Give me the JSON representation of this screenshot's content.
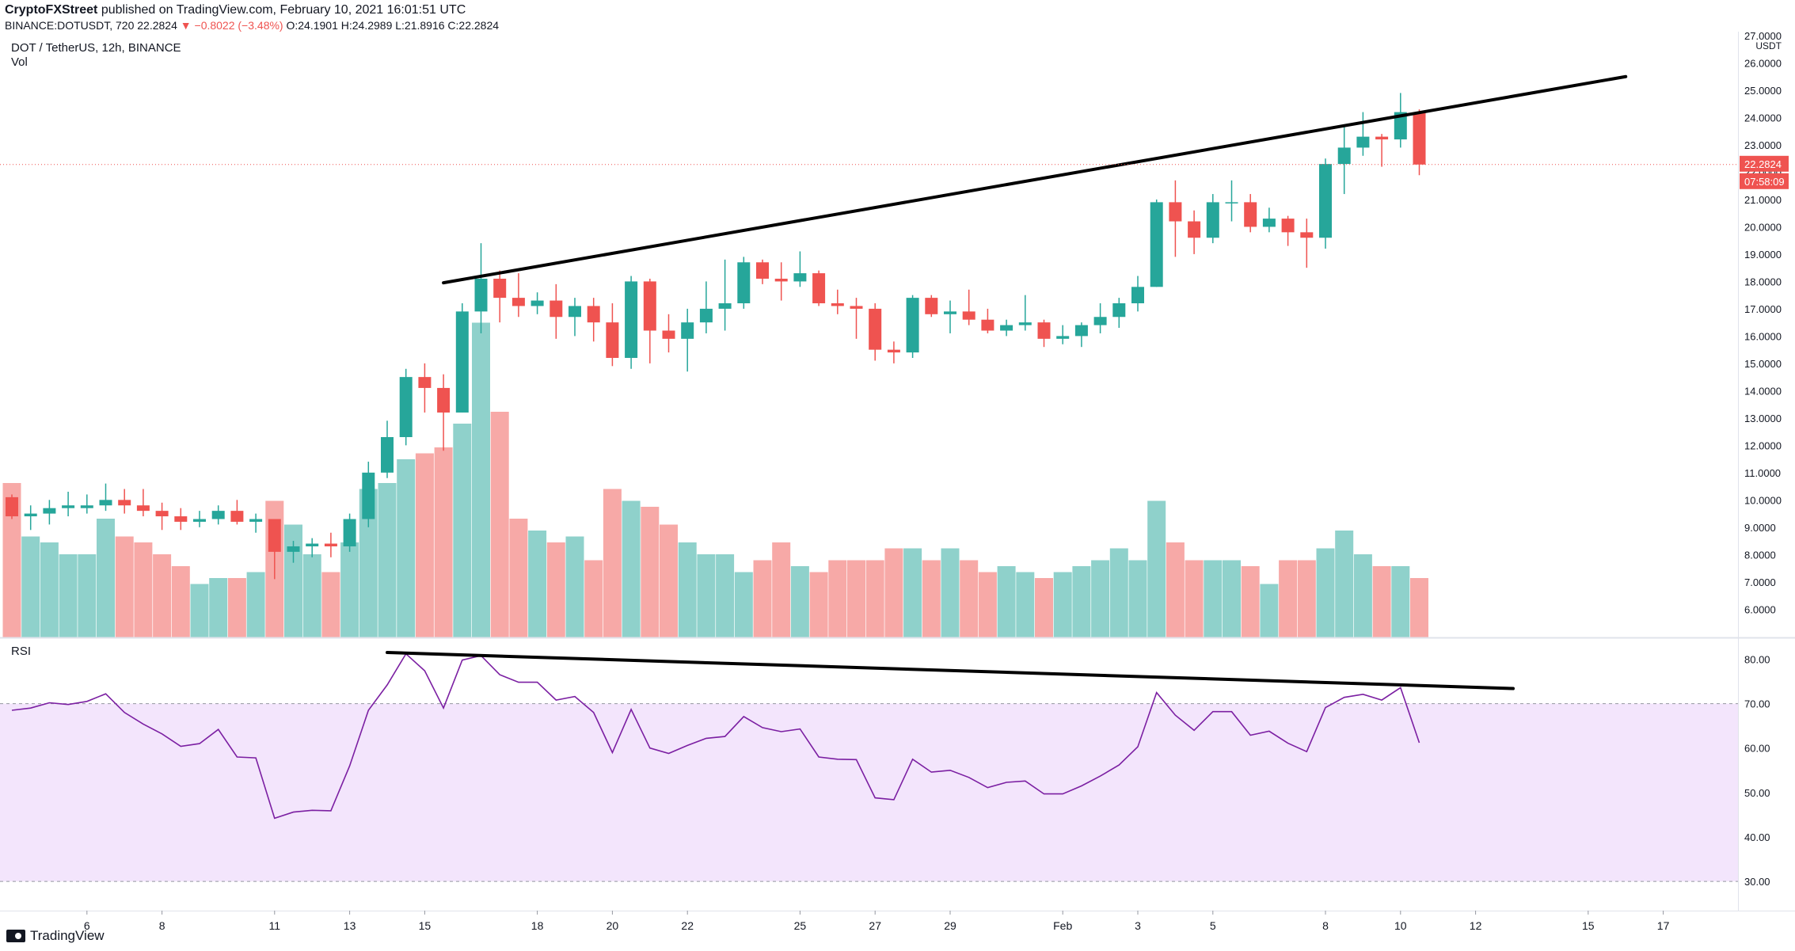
{
  "header": {
    "publisher": "CryptoFXStreet",
    "published_text": "published on TradingView.com, February 10, 2021 16:01:51 UTC",
    "ticker_line": "BINANCE:DOTUSDT, 720",
    "last": "22.2824",
    "change": "▼ −0.8022 (−3.48%)",
    "ohlc": "O:24.1901 H:24.2989 L:21.8916 C:22.2824"
  },
  "symbol_title": "DOT / TetherUS, 12h, BINANCE",
  "volume_label": "Vol",
  "rsi_label": "RSI",
  "logo_text": "TradingView",
  "colors": {
    "up": "#26a69a",
    "down": "#ef5350",
    "vol_up": "#8fd1cb",
    "vol_down": "#f7a9a7",
    "rsi_line": "#7b1fa2",
    "rsi_band": "#f3e5fc",
    "trendline": "#000000"
  },
  "chart_data": [
    {
      "type": "candlestick",
      "title": "DOT / TetherUS, 12h, BINANCE",
      "y_axis": {
        "unit": "USDT",
        "ylim": [
          5.4,
          27.0
        ],
        "ticks": [
          6,
          7,
          8,
          9,
          10,
          11,
          12,
          13,
          14,
          15,
          16,
          17,
          18,
          19,
          20,
          21,
          22,
          23,
          24,
          25,
          26,
          27
        ],
        "tick_labels": [
          "6.0000",
          "7.0000",
          "8.0000",
          "9.0000",
          "10.0000",
          "11.0000",
          "12.0000",
          "13.0000",
          "14.0000",
          "15.0000",
          "16.0000",
          "17.0000",
          "18.0000",
          "19.0000",
          "20.0000",
          "21.0000",
          "22.0000",
          "23.0000",
          "24.0000",
          "25.0000",
          "26.0000",
          "27.0000"
        ]
      },
      "x_axis": {
        "tick_labels": [
          "6",
          "8",
          "11",
          "13",
          "15",
          "18",
          "20",
          "22",
          "25",
          "27",
          "29",
          "Feb",
          "3",
          "5",
          "8",
          "10",
          "12",
          "15",
          "17"
        ],
        "tick_candle_index": [
          4,
          8,
          14,
          18,
          22,
          28,
          32,
          36,
          42,
          46,
          50,
          56,
          60,
          64,
          70,
          74,
          78,
          84,
          88
        ]
      },
      "last_price_label": "22.2824",
      "countdown_label": "07:58:09",
      "candles": [
        {
          "o": 10.1,
          "h": 10.2,
          "l": 9.3,
          "c": 9.4
        },
        {
          "o": 9.4,
          "h": 9.8,
          "l": 8.9,
          "c": 9.5
        },
        {
          "o": 9.5,
          "h": 10.0,
          "l": 9.1,
          "c": 9.7
        },
        {
          "o": 9.7,
          "h": 10.3,
          "l": 9.4,
          "c": 9.8
        },
        {
          "o": 9.7,
          "h": 10.2,
          "l": 9.5,
          "c": 9.8
        },
        {
          "o": 9.8,
          "h": 10.6,
          "l": 9.6,
          "c": 10.0
        },
        {
          "o": 10.0,
          "h": 10.4,
          "l": 9.5,
          "c": 9.8
        },
        {
          "o": 9.8,
          "h": 10.4,
          "l": 9.4,
          "c": 9.6
        },
        {
          "o": 9.6,
          "h": 9.9,
          "l": 8.9,
          "c": 9.4
        },
        {
          "o": 9.4,
          "h": 9.7,
          "l": 8.9,
          "c": 9.2
        },
        {
          "o": 9.2,
          "h": 9.6,
          "l": 9.0,
          "c": 9.3
        },
        {
          "o": 9.3,
          "h": 9.8,
          "l": 9.1,
          "c": 9.6
        },
        {
          "o": 9.6,
          "h": 10.0,
          "l": 9.1,
          "c": 9.2
        },
        {
          "o": 9.2,
          "h": 9.5,
          "l": 8.8,
          "c": 9.3
        },
        {
          "o": 9.3,
          "h": 9.3,
          "l": 7.1,
          "c": 8.1
        },
        {
          "o": 8.1,
          "h": 8.5,
          "l": 7.7,
          "c": 8.3
        },
        {
          "o": 8.3,
          "h": 8.6,
          "l": 7.9,
          "c": 8.4
        },
        {
          "o": 8.4,
          "h": 8.8,
          "l": 7.9,
          "c": 8.3
        },
        {
          "o": 8.3,
          "h": 9.5,
          "l": 8.1,
          "c": 9.3
        },
        {
          "o": 9.3,
          "h": 11.4,
          "l": 9.0,
          "c": 11.0
        },
        {
          "o": 11.0,
          "h": 12.9,
          "l": 10.8,
          "c": 12.3
        },
        {
          "o": 12.3,
          "h": 14.8,
          "l": 12.0,
          "c": 14.5
        },
        {
          "o": 14.5,
          "h": 15.0,
          "l": 13.2,
          "c": 14.1
        },
        {
          "o": 14.1,
          "h": 14.6,
          "l": 11.8,
          "c": 13.2
        },
        {
          "o": 13.2,
          "h": 17.2,
          "l": 13.2,
          "c": 16.9
        },
        {
          "o": 16.9,
          "h": 19.4,
          "l": 16.1,
          "c": 18.1
        },
        {
          "o": 18.1,
          "h": 18.4,
          "l": 16.5,
          "c": 17.4
        },
        {
          "o": 17.4,
          "h": 18.3,
          "l": 16.7,
          "c": 17.1
        },
        {
          "o": 17.1,
          "h": 17.6,
          "l": 16.8,
          "c": 17.3
        },
        {
          "o": 17.3,
          "h": 17.9,
          "l": 15.9,
          "c": 16.7
        },
        {
          "o": 16.7,
          "h": 17.4,
          "l": 16.0,
          "c": 17.1
        },
        {
          "o": 17.1,
          "h": 17.4,
          "l": 15.8,
          "c": 16.5
        },
        {
          "o": 16.5,
          "h": 17.2,
          "l": 14.9,
          "c": 15.2
        },
        {
          "o": 15.2,
          "h": 18.2,
          "l": 14.8,
          "c": 18.0
        },
        {
          "o": 18.0,
          "h": 18.1,
          "l": 15.0,
          "c": 16.2
        },
        {
          "o": 16.2,
          "h": 16.8,
          "l": 15.4,
          "c": 15.9
        },
        {
          "o": 15.9,
          "h": 17.0,
          "l": 14.7,
          "c": 16.5
        },
        {
          "o": 16.5,
          "h": 18.0,
          "l": 16.1,
          "c": 17.0
        },
        {
          "o": 17.0,
          "h": 18.8,
          "l": 16.2,
          "c": 17.2
        },
        {
          "o": 17.2,
          "h": 18.9,
          "l": 17.0,
          "c": 18.7
        },
        {
          "o": 18.7,
          "h": 18.8,
          "l": 17.9,
          "c": 18.1
        },
        {
          "o": 18.1,
          "h": 18.7,
          "l": 17.3,
          "c": 18.0
        },
        {
          "o": 18.0,
          "h": 19.1,
          "l": 17.8,
          "c": 18.3
        },
        {
          "o": 18.3,
          "h": 18.4,
          "l": 17.1,
          "c": 17.2
        },
        {
          "o": 17.2,
          "h": 17.7,
          "l": 16.8,
          "c": 17.1
        },
        {
          "o": 17.1,
          "h": 17.4,
          "l": 15.9,
          "c": 17.0
        },
        {
          "o": 17.0,
          "h": 17.2,
          "l": 15.1,
          "c": 15.5
        },
        {
          "o": 15.5,
          "h": 15.8,
          "l": 15.0,
          "c": 15.4
        },
        {
          "o": 15.4,
          "h": 17.5,
          "l": 15.2,
          "c": 17.4
        },
        {
          "o": 17.4,
          "h": 17.5,
          "l": 16.7,
          "c": 16.8
        },
        {
          "o": 16.8,
          "h": 17.3,
          "l": 16.1,
          "c": 16.9
        },
        {
          "o": 16.9,
          "h": 17.7,
          "l": 16.4,
          "c": 16.6
        },
        {
          "o": 16.6,
          "h": 17.0,
          "l": 16.1,
          "c": 16.2
        },
        {
          "o": 16.2,
          "h": 16.6,
          "l": 16.0,
          "c": 16.4
        },
        {
          "o": 16.4,
          "h": 17.5,
          "l": 16.2,
          "c": 16.5
        },
        {
          "o": 16.5,
          "h": 16.6,
          "l": 15.6,
          "c": 15.9
        },
        {
          "o": 15.9,
          "h": 16.4,
          "l": 15.7,
          "c": 16.0
        },
        {
          "o": 16.0,
          "h": 16.5,
          "l": 15.6,
          "c": 16.4
        },
        {
          "o": 16.4,
          "h": 17.2,
          "l": 16.1,
          "c": 16.7
        },
        {
          "o": 16.7,
          "h": 17.4,
          "l": 16.3,
          "c": 17.2
        },
        {
          "o": 17.2,
          "h": 18.2,
          "l": 16.9,
          "c": 17.8
        },
        {
          "o": 17.8,
          "h": 21.0,
          "l": 17.8,
          "c": 20.9
        },
        {
          "o": 20.9,
          "h": 21.7,
          "l": 18.9,
          "c": 20.2
        },
        {
          "o": 20.2,
          "h": 20.6,
          "l": 19.0,
          "c": 19.6
        },
        {
          "o": 19.6,
          "h": 21.2,
          "l": 19.4,
          "c": 20.9
        },
        {
          "o": 20.9,
          "h": 21.7,
          "l": 20.2,
          "c": 20.9
        },
        {
          "o": 20.9,
          "h": 21.2,
          "l": 19.8,
          "c": 20.0
        },
        {
          "o": 20.0,
          "h": 20.7,
          "l": 19.8,
          "c": 20.3
        },
        {
          "o": 20.3,
          "h": 20.4,
          "l": 19.3,
          "c": 19.8
        },
        {
          "o": 19.8,
          "h": 20.3,
          "l": 18.5,
          "c": 19.6
        },
        {
          "o": 19.6,
          "h": 22.5,
          "l": 19.2,
          "c": 22.3
        },
        {
          "o": 22.3,
          "h": 23.7,
          "l": 21.2,
          "c": 22.9
        },
        {
          "o": 22.9,
          "h": 24.2,
          "l": 22.6,
          "c": 23.3
        },
        {
          "o": 23.3,
          "h": 23.4,
          "l": 22.2,
          "c": 23.2
        },
        {
          "o": 23.2,
          "h": 24.9,
          "l": 22.9,
          "c": 24.2
        },
        {
          "o": 24.19,
          "h": 24.3,
          "l": 21.89,
          "c": 22.28
        }
      ],
      "trendline": {
        "from": {
          "candle": 23,
          "price": 17.95
        },
        "to": {
          "candle": 86,
          "price": 25.5
        }
      }
    },
    {
      "type": "bar",
      "title": "Vol",
      "values": [
        8.1,
        7.2,
        7.1,
        6.9,
        6.9,
        7.5,
        7.2,
        7.1,
        6.9,
        6.7,
        6.4,
        6.5,
        6.5,
        6.6,
        7.8,
        7.4,
        6.9,
        6.6,
        7.1,
        8.0,
        8.1,
        8.5,
        8.6,
        8.7,
        9.1,
        10.8,
        9.3,
        7.5,
        7.3,
        7.1,
        7.2,
        6.8,
        8.0,
        7.8,
        7.7,
        7.4,
        7.1,
        6.9,
        6.9,
        6.6,
        6.8,
        7.1,
        6.7,
        6.6,
        6.8,
        6.8,
        6.8,
        7.0,
        7.0,
        6.8,
        7.0,
        6.8,
        6.6,
        6.7,
        6.6,
        6.5,
        6.6,
        6.7,
        6.8,
        7.0,
        6.8,
        7.8,
        7.1,
        6.8,
        6.8,
        6.8,
        6.7,
        6.4,
        6.8,
        6.8,
        7.0,
        7.3,
        6.9,
        6.7,
        6.7,
        6.5
      ],
      "colors_follow_candles": true
    },
    {
      "type": "line",
      "title": "RSI",
      "ylim": [
        27,
        84
      ],
      "ticks": [
        30,
        40,
        50,
        60,
        70,
        80
      ],
      "tick_labels": [
        "30.00",
        "40.00",
        "50.00",
        "60.00",
        "70.00",
        "80.00"
      ],
      "band": [
        30,
        70
      ],
      "values": [
        68.5,
        69.0,
        70.2,
        69.8,
        70.5,
        72.2,
        68.0,
        65.4,
        63.2,
        60.4,
        61.0,
        64.2,
        58.0,
        57.8,
        44.2,
        45.6,
        46.0,
        45.9,
        56.0,
        68.5,
        74.2,
        81.2,
        77.4,
        69.0,
        79.8,
        80.8,
        76.5,
        74.8,
        74.8,
        70.8,
        71.6,
        68.0,
        59.0,
        68.7,
        60.0,
        58.8,
        60.6,
        62.2,
        62.6,
        67.1,
        64.6,
        63.7,
        64.3,
        58.0,
        57.5,
        57.4,
        48.8,
        48.4,
        57.5,
        54.6,
        55.0,
        53.4,
        51.1,
        52.3,
        52.6,
        49.7,
        49.7,
        51.5,
        53.7,
        56.2,
        60.3,
        72.5,
        67.4,
        64.0,
        68.2,
        68.2,
        62.9,
        63.8,
        61.1,
        59.2,
        69.1,
        71.4,
        72.1,
        70.8,
        73.6,
        61.2
      ],
      "trendline": {
        "from": {
          "candle": 20,
          "value": 81.5
        },
        "to": {
          "candle": 80,
          "value": 73.4
        }
      }
    }
  ]
}
